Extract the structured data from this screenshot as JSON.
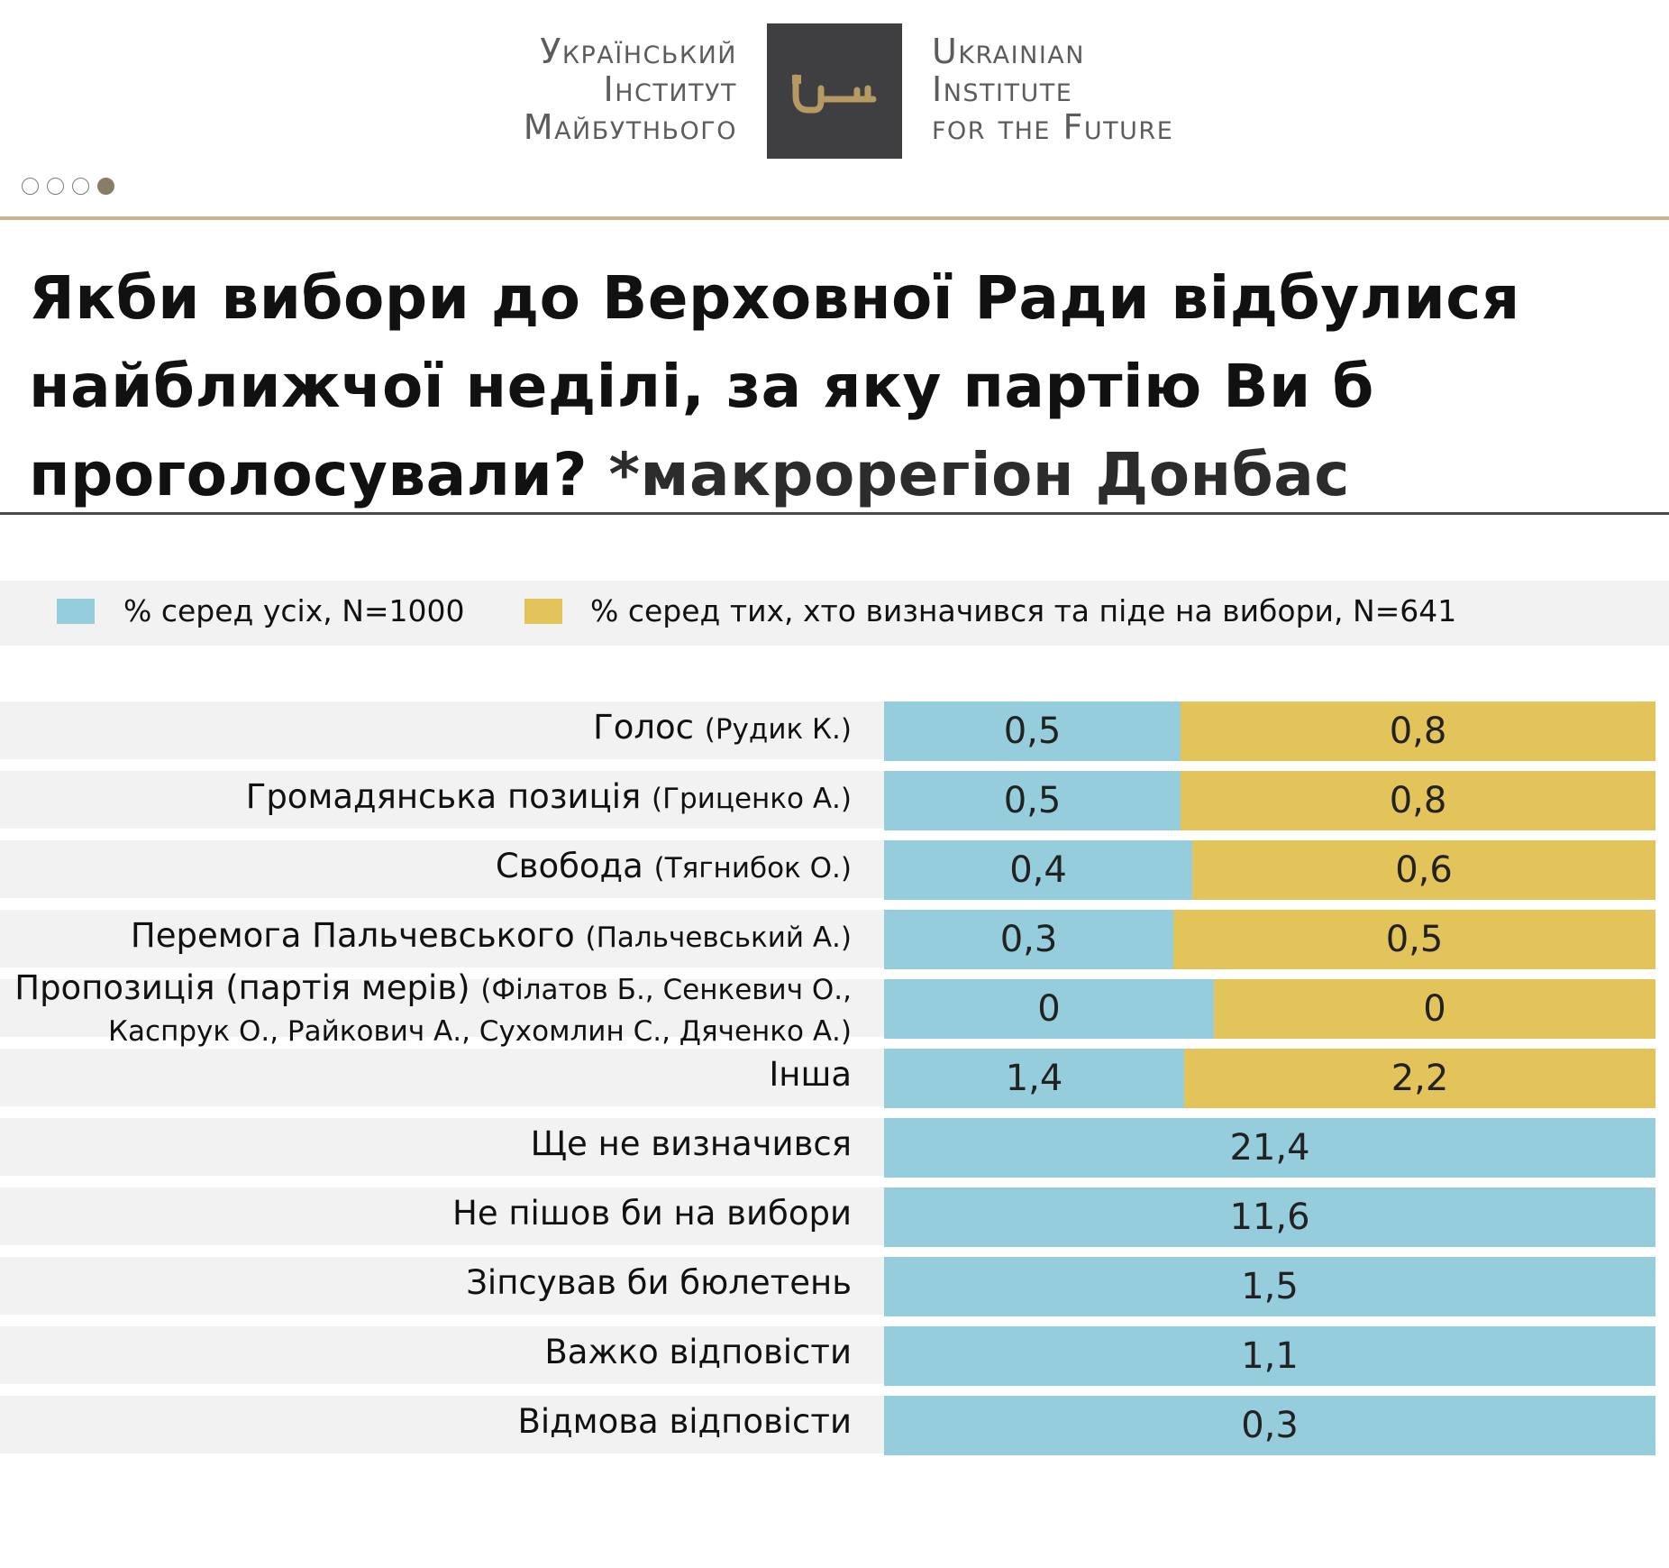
{
  "header": {
    "org_ua": [
      "Український",
      "Інститут",
      "Майбутнього"
    ],
    "org_en": [
      "Ukrainian",
      "Institute",
      "for the Future"
    ],
    "logo_icon": "key-icon"
  },
  "pager": {
    "total": 4,
    "active": 4
  },
  "title": {
    "main": "Якби вибори до Верховної Ради відбулися найближчої неділі, за яку партію Ви б проголосували?",
    "region": "*макрорегіон Донбас"
  },
  "colors": {
    "all": "#95cddd",
    "decided": "#e3c45b",
    "accent": "#c9b38a"
  },
  "chart_data": {
    "type": "bar",
    "orientation": "horizontal",
    "stacking": "side-by-side",
    "legend": [
      {
        "name": "% серед усіх, N=1000",
        "color": "#95cddd"
      },
      {
        "name": "% серед тих, хто визначився та піде на вибори, N=641",
        "color": "#e3c45b"
      }
    ],
    "rows": [
      {
        "party": "Голос",
        "leader": "(Рудик К.)",
        "all": "0,5",
        "decided": "0,8"
      },
      {
        "party": "Громадянська позиція",
        "leader": "(Гриценко А.)",
        "all": "0,5",
        "decided": "0,8"
      },
      {
        "party": "Свобода",
        "leader": "(Тягнибок О.)",
        "all": "0,4",
        "decided": "0,6"
      },
      {
        "party": "Перемога Пальчевського",
        "leader": "(Пальчевський А.)",
        "all": "0,3",
        "decided": "0,5"
      },
      {
        "party": "Пропозиція (партія мерів)",
        "leader": "(Філатов Б., Сенкевич О., Каспрук О., Райкович А., Сухомлин С., Дяченко А.)",
        "all": "0",
        "decided": "0"
      },
      {
        "party": "Інша",
        "leader": "",
        "all": "1,4",
        "decided": "2,2"
      },
      {
        "party": "Ще не визначився",
        "leader": "",
        "all": "21,4",
        "decided": null
      },
      {
        "party": "Не пішов би на вибори",
        "leader": "",
        "all": "11,6",
        "decided": null
      },
      {
        "party": "Зіпсував би бюлетень",
        "leader": "",
        "all": "1,5",
        "decided": null
      },
      {
        "party": "Важко відповісти",
        "leader": "",
        "all": "1,1",
        "decided": null
      },
      {
        "party": "Відмова відповісти",
        "leader": "",
        "all": "0,3",
        "decided": null
      }
    ]
  }
}
